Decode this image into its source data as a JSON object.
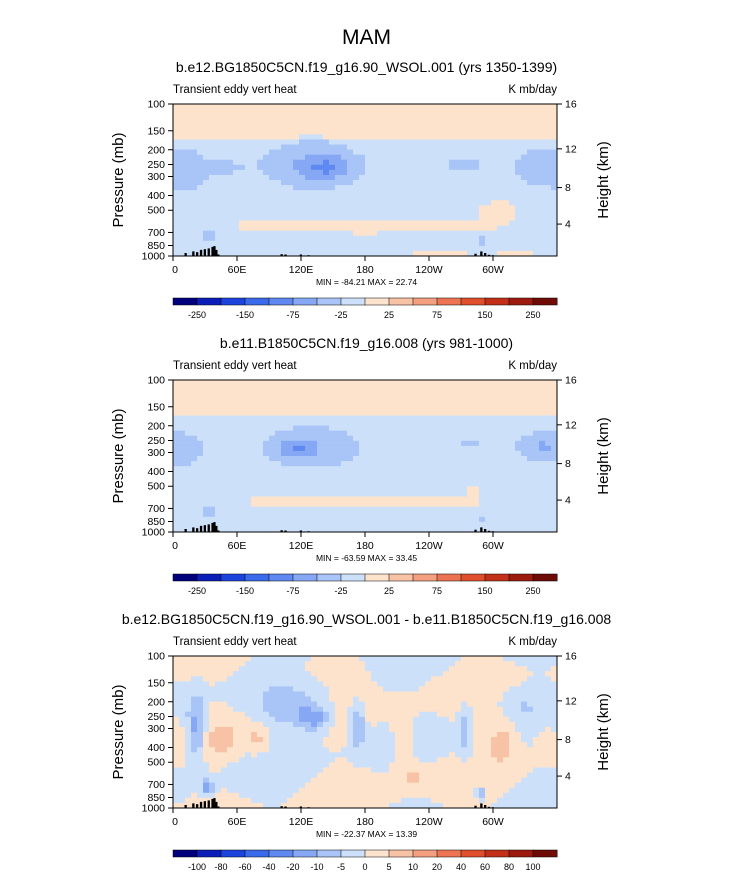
{
  "main_title": "MAM",
  "chart_data": [
    {
      "type": "heatmap",
      "title": "b.e12.BG1850C5CN.f19_g16.90_WSOL.001 (yrs 1350-1399)",
      "left_string": "Transient eddy vert heat",
      "right_string": "K mb/day",
      "ylabel": "Pressure (mb)",
      "ylabel_right": "Height (km)",
      "pressure_ticks": [
        "100",
        "150",
        "200",
        "250",
        "300",
        "400",
        "500",
        "700",
        "850",
        "1000"
      ],
      "height_ticks": [
        "16",
        "12",
        "8",
        "4"
      ],
      "lon_ticks": [
        "0",
        "60E",
        "120E",
        "180",
        "120W",
        "60W"
      ],
      "stats": "MIN = -84.21   MAX =  22.74",
      "colorbar_labels": [
        "-250",
        "-150",
        "-75",
        "-25",
        "25",
        "75",
        "150",
        "250"
      ],
      "levels": [
        -300,
        -250,
        -200,
        -150,
        -100,
        -75,
        -50,
        -25,
        0,
        25,
        50,
        75,
        100,
        150,
        200,
        250,
        300
      ],
      "min": -84.21,
      "max": 22.74
    },
    {
      "type": "heatmap",
      "title": "b.e11.B1850C5CN.f19_g16.008 (yrs 981-1000)",
      "left_string": "Transient eddy vert heat",
      "right_string": "K mb/day",
      "ylabel": "Pressure (mb)",
      "ylabel_right": "Height (km)",
      "pressure_ticks": [
        "100",
        "150",
        "200",
        "250",
        "300",
        "400",
        "500",
        "700",
        "850",
        "1000"
      ],
      "height_ticks": [
        "16",
        "12",
        "8",
        "4"
      ],
      "lon_ticks": [
        "0",
        "60E",
        "120E",
        "180",
        "120W",
        "60W"
      ],
      "stats": "MIN = -63.59   MAX =  33.45",
      "colorbar_labels": [
        "-250",
        "-150",
        "-75",
        "-25",
        "25",
        "75",
        "150",
        "250"
      ],
      "levels": [
        -300,
        -250,
        -200,
        -150,
        -100,
        -75,
        -50,
        -25,
        0,
        25,
        50,
        75,
        100,
        150,
        200,
        250,
        300
      ],
      "min": -63.59,
      "max": 33.45
    },
    {
      "type": "heatmap",
      "title": "b.e12.BG1850C5CN.f19_g16.90_WSOL.001 - b.e11.B1850C5CN.f19_g16.008",
      "left_string": "Transient eddy vert heat",
      "right_string": "K mb/day",
      "ylabel": "Pressure (mb)",
      "ylabel_right": "Height (km)",
      "pressure_ticks": [
        "100",
        "150",
        "200",
        "250",
        "300",
        "400",
        "500",
        "700",
        "850",
        "1000"
      ],
      "height_ticks": [
        "16",
        "12",
        "8",
        "4"
      ],
      "lon_ticks": [
        "0",
        "60E",
        "120E",
        "180",
        "120W",
        "60W"
      ],
      "stats": "MIN = -22.37   MAX =  13.39",
      "colorbar_labels": [
        "-100",
        "-80",
        "-60",
        "-40",
        "-20",
        "-10",
        "-5",
        "0",
        "5",
        "10",
        "20",
        "40",
        "60",
        "80",
        "100"
      ],
      "levels": [
        -120,
        -100,
        -80,
        -60,
        -40,
        -20,
        -10,
        -5,
        0,
        5,
        10,
        20,
        40,
        60,
        80,
        100,
        120
      ],
      "min": -22.37,
      "max": 13.39
    }
  ],
  "colors": {
    "palette": [
      "#00007d",
      "#0b1fb8",
      "#1c44dc",
      "#3b6aea",
      "#5f89f0",
      "#86a8f4",
      "#a9c4f6",
      "#cde0fa",
      "#fde3cc",
      "#f8c2a6",
      "#f39f80",
      "#ec7452",
      "#df4f2e",
      "#c3301a",
      "#9c1a0e",
      "#6e0b06"
    ],
    "topography": "#000000"
  }
}
